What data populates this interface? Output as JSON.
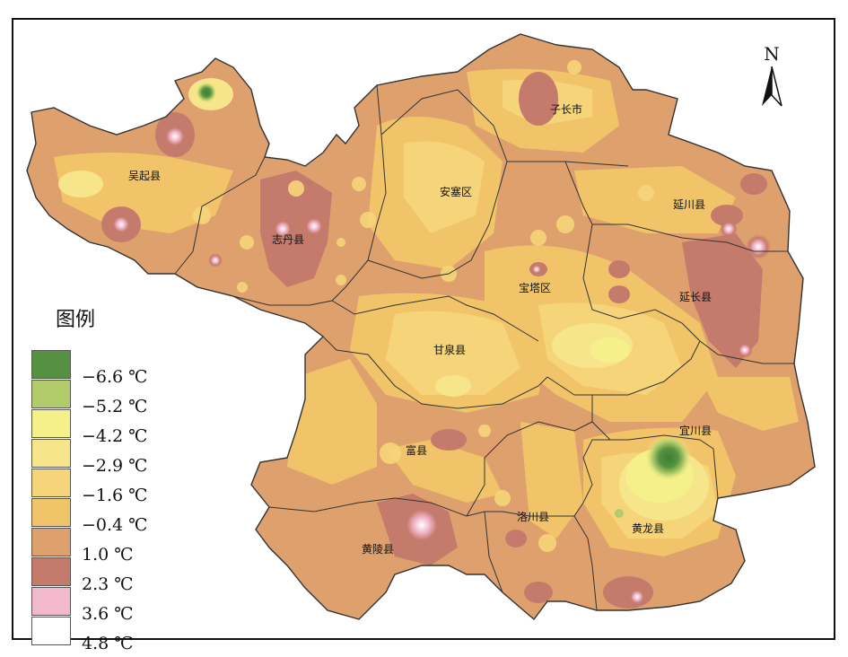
{
  "legend": {
    "title": "图例",
    "items": [
      {
        "label": "−6.6 ℃",
        "color": "#559140"
      },
      {
        "label": "−5.2 ℃",
        "color": "#b3cc6b"
      },
      {
        "label": "−4.2 ℃",
        "color": "#f5f08a"
      },
      {
        "label": "−2.9 ℃",
        "color": "#f7e58b"
      },
      {
        "label": "−1.6 ℃",
        "color": "#f6d57a"
      },
      {
        "label": "−0.4 ℃",
        "color": "#f2c46a"
      },
      {
        "label": "1.0 ℃",
        "color": "#dea06c"
      },
      {
        "label": "2.3 ℃",
        "color": "#c57b6c"
      },
      {
        "label": "3.6 ℃",
        "color": "#f2b8cc"
      },
      {
        "label": "4.8 ℃",
        "color": "#ffffff"
      }
    ]
  },
  "north_arrow": {
    "letter": "N"
  },
  "counties": {
    "wuqi": "吴起县",
    "zhidan": "志丹县",
    "ansai": "安塞区",
    "zichang": "子长市",
    "yanchuan": "延川县",
    "baota": "宝塔区",
    "yanchang": "延长县",
    "ganquan": "甘泉县",
    "fu": "富县",
    "yichuan": "宜川县",
    "luochuan": "洛川县",
    "huanglong": "黄龙县",
    "huangling": "黄陵县"
  }
}
